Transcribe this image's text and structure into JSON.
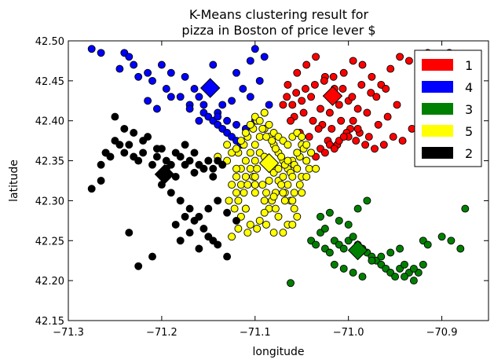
{
  "chart_data": {
    "type": "scatter",
    "title": "K-Means clustering result for\npizza in Boston of price lever $",
    "xlabel": "longitude",
    "ylabel": "latitude",
    "xlim": [
      -71.3,
      -70.85
    ],
    "ylim": [
      42.15,
      42.5
    ],
    "x_ticks": [
      "−71.3",
      "−71.2",
      "−71.1",
      "−71.0",
      "−70.9"
    ],
    "y_ticks": [
      "42.15",
      "42.20",
      "42.25",
      "42.30",
      "42.35",
      "42.40",
      "42.45",
      "42.50"
    ],
    "grid": false,
    "legend_position": "top-right",
    "legend": [
      {
        "label": "1",
        "color": "#ff0000"
      },
      {
        "label": "4",
        "color": "#0000ff"
      },
      {
        "label": "3",
        "color": "#008000"
      },
      {
        "label": "5",
        "color": "#ffff00"
      },
      {
        "label": "2",
        "color": "#000000"
      }
    ],
    "centroids": [
      {
        "cluster": "1",
        "x": -71.017,
        "y": 42.431,
        "color": "#ff0000"
      },
      {
        "cluster": "4",
        "x": -71.148,
        "y": 42.441,
        "color": "#0000ff"
      },
      {
        "cluster": "3",
        "x": -70.99,
        "y": 42.238,
        "color": "#008000"
      },
      {
        "cluster": "5",
        "x": -71.085,
        "y": 42.347,
        "color": "#ffff00"
      },
      {
        "cluster": "2",
        "x": -71.197,
        "y": 42.333,
        "color": "#000000"
      }
    ],
    "series": [
      {
        "name": "1",
        "color": "#ff0000",
        "x": [
          -71.065,
          -71.055,
          -71.045,
          -71.035,
          -71.025,
          -71.015,
          -71.005,
          -70.995,
          -70.985,
          -70.975,
          -70.965,
          -70.955,
          -70.945,
          -70.935,
          -70.925,
          -70.915,
          -70.905,
          -70.895,
          -70.885,
          -71.06,
          -71.05,
          -71.04,
          -71.03,
          -71.02,
          -71.01,
          -71.0,
          -70.99,
          -70.98,
          -70.97,
          -70.96,
          -71.07,
          -71.058,
          -71.048,
          -71.038,
          -71.028,
          -71.018,
          -71.008,
          -70.998,
          -70.988,
          -70.978,
          -70.968,
          -70.958,
          -70.948,
          -71.062,
          -71.052,
          -71.042,
          -71.032,
          -71.022,
          -71.012,
          -71.002,
          -70.992,
          -70.982,
          -70.972,
          -70.962,
          -70.952,
          -70.942,
          -70.932,
          -70.922,
          -70.912,
          -70.902,
          -70.892,
          -70.888,
          -70.875,
          -70.88,
          -71.066,
          -71.056,
          -71.046,
          -71.036,
          -71.026,
          -71.016,
          -71.006,
          -70.996,
          -70.986,
          -70.976,
          -71.04,
          -71.03,
          -71.02,
          -71.01,
          -71.0,
          -70.99,
          -71.045,
          -71.035,
          -71.025,
          -71.015,
          -71.005,
          -70.995
        ],
        "y": [
          42.445,
          42.46,
          42.47,
          42.48,
          42.455,
          42.44,
          42.46,
          42.475,
          42.47,
          42.455,
          42.445,
          42.465,
          42.48,
          42.475,
          42.46,
          42.485,
          42.48,
          42.47,
          42.46,
          42.42,
          42.425,
          42.43,
          42.415,
          42.41,
          42.42,
          42.425,
          42.415,
          42.41,
          42.43,
          42.44,
          42.42,
          42.405,
          42.41,
          42.4,
          42.395,
          42.39,
          42.4,
          42.39,
          42.385,
          42.38,
          42.395,
          42.405,
          42.42,
          42.4,
          42.385,
          42.38,
          42.39,
          42.375,
          42.37,
          42.385,
          42.375,
          42.37,
          42.365,
          42.37,
          42.38,
          42.375,
          42.39,
          42.4,
          42.47,
          42.48,
          42.485,
          42.475,
          42.48,
          42.43,
          42.43,
          42.435,
          42.44,
          42.445,
          42.45,
          42.455,
          42.44,
          42.43,
          42.445,
          42.435,
          42.36,
          42.365,
          42.37,
          42.375,
          42.38,
          42.39,
          42.35,
          42.355,
          42.36,
          42.365,
          42.38,
          42.4
        ]
      },
      {
        "name": "4",
        "color": "#0000ff",
        "x": [
          -71.275,
          -71.265,
          -71.24,
          -71.235,
          -71.215,
          -71.2,
          -71.19,
          -71.175,
          -71.165,
          -71.16,
          -71.155,
          -71.14,
          -71.13,
          -71.12,
          -71.11,
          -71.1,
          -71.09,
          -71.085,
          -71.21,
          -71.195,
          -71.18,
          -71.17,
          -71.155,
          -71.15,
          -71.145,
          -71.14,
          -71.135,
          -71.13,
          -71.125,
          -71.12,
          -71.115,
          -71.11,
          -71.105,
          -71.245,
          -71.23,
          -71.225,
          -71.215,
          -71.205,
          -71.19,
          -71.17,
          -71.14,
          -71.12,
          -71.1,
          -71.09,
          -71.105,
          -71.095,
          -71.113,
          -71.125,
          -71.135,
          -71.145,
          -71.16
        ],
        "y": [
          42.49,
          42.485,
          42.485,
          42.48,
          42.46,
          42.47,
          42.46,
          42.455,
          42.44,
          42.43,
          42.42,
          42.41,
          42.4,
          42.395,
          42.39,
          42.4,
          42.41,
          42.42,
          42.45,
          42.44,
          42.43,
          42.42,
          42.41,
          42.405,
          42.4,
          42.395,
          42.39,
          42.385,
          42.38,
          42.375,
          42.37,
          42.39,
          42.43,
          42.465,
          42.47,
          42.455,
          42.425,
          42.415,
          42.43,
          42.415,
          42.405,
          42.46,
          42.49,
          42.48,
          42.475,
          42.45,
          42.44,
          42.425,
          42.42,
          42.47,
          42.4
        ]
      },
      {
        "name": "3",
        "color": "#008000",
        "x": [
          -71.04,
          -71.035,
          -71.03,
          -71.025,
          -71.02,
          -71.015,
          -71.01,
          -71.005,
          -71.0,
          -70.995,
          -70.99,
          -70.985,
          -70.98,
          -70.975,
          -70.97,
          -70.965,
          -70.96,
          -70.955,
          -70.95,
          -70.945,
          -70.94,
          -70.935,
          -70.93,
          -70.925,
          -70.92,
          -70.915,
          -70.9,
          -70.89,
          -70.88,
          -70.875,
          -71.03,
          -71.02,
          -71.0,
          -70.99,
          -70.98,
          -71.015,
          -71.005,
          -70.995,
          -70.985,
          -70.975,
          -70.965,
          -70.955,
          -70.945,
          -70.94,
          -70.93,
          -70.92,
          -71.062,
          -71.025,
          -71.01
        ],
        "y": [
          42.25,
          42.245,
          42.26,
          42.24,
          42.235,
          42.25,
          42.245,
          42.24,
          42.25,
          42.255,
          42.245,
          42.24,
          42.235,
          42.23,
          42.225,
          42.22,
          42.215,
          42.21,
          42.205,
          42.215,
          42.22,
          42.21,
          42.2,
          42.21,
          42.25,
          42.245,
          42.255,
          42.25,
          42.24,
          42.29,
          42.28,
          42.285,
          42.27,
          42.29,
          42.3,
          42.22,
          42.215,
          42.21,
          42.205,
          42.225,
          42.23,
          42.235,
          42.24,
          42.205,
          42.215,
          42.22,
          42.197,
          42.265,
          42.275
        ]
      },
      {
        "name": "5",
        "color": "#ffff00",
        "x": [
          -71.12,
          -71.115,
          -71.11,
          -71.105,
          -71.1,
          -71.095,
          -71.09,
          -71.085,
          -71.08,
          -71.075,
          -71.07,
          -71.065,
          -71.06,
          -71.055,
          -71.05,
          -71.045,
          -71.118,
          -71.112,
          -71.108,
          -71.102,
          -71.098,
          -71.092,
          -71.088,
          -71.082,
          -71.078,
          -71.072,
          -71.068,
          -71.062,
          -71.058,
          -71.052,
          -71.048,
          -71.042,
          -71.125,
          -71.12,
          -71.115,
          -71.11,
          -71.105,
          -71.1,
          -71.095,
          -71.09,
          -71.085,
          -71.08,
          -71.075,
          -71.07,
          -71.065,
          -71.06,
          -71.055,
          -71.05,
          -71.128,
          -71.122,
          -71.118,
          -71.112,
          -71.108,
          -71.102,
          -71.098,
          -71.092,
          -71.088,
          -71.082,
          -71.078,
          -71.072,
          -71.068,
          -71.062,
          -71.058,
          -71.052,
          -71.13,
          -71.125,
          -71.12,
          -71.115,
          -71.11,
          -71.105,
          -71.1,
          -71.095,
          -71.09,
          -71.085,
          -71.08,
          -71.075,
          -71.07,
          -71.065,
          -71.06,
          -71.055,
          -71.05,
          -71.045,
          -71.04,
          -71.035,
          -71.115,
          -71.105,
          -71.095,
          -71.085,
          -71.075,
          -71.065,
          -71.055,
          -71.108,
          -71.098,
          -71.088,
          -71.078,
          -71.068,
          -71.058,
          -71.1,
          -71.09,
          -71.08,
          -71.07,
          -71.06,
          -71.05,
          -71.14,
          -71.135,
          -71.13,
          -71.12,
          -71.11,
          -71.09,
          -71.08,
          -71.07,
          -71.06,
          -71.1,
          -71.085,
          -71.075,
          -71.065,
          -71.055,
          -71.045,
          -71.125,
          -71.118,
          -71.11,
          -71.1
        ],
        "y": [
          42.33,
          42.34,
          42.35,
          42.36,
          42.37,
          42.38,
          42.39,
          42.38,
          42.37,
          42.36,
          42.35,
          42.34,
          42.35,
          42.36,
          42.37,
          42.35,
          42.36,
          42.37,
          42.38,
          42.39,
          42.4,
          42.39,
          42.38,
          42.375,
          42.365,
          42.355,
          42.345,
          42.335,
          42.345,
          42.355,
          42.365,
          42.34,
          42.32,
          42.31,
          42.32,
          42.33,
          42.34,
          42.35,
          42.36,
          42.355,
          42.345,
          42.335,
          42.325,
          42.33,
          42.32,
          42.33,
          42.34,
          42.33,
          42.3,
          42.29,
          42.3,
          42.31,
          42.32,
          42.33,
          42.34,
          42.32,
          42.31,
          42.3,
          42.31,
          42.32,
          42.31,
          42.3,
          42.31,
          42.32,
          42.35,
          42.36,
          42.365,
          42.375,
          42.385,
          42.395,
          42.405,
          42.4,
          42.41,
          42.395,
          42.385,
          42.38,
          42.375,
          42.37,
          42.38,
          42.385,
          42.38,
          42.37,
          42.36,
          42.34,
          42.28,
          42.27,
          42.275,
          42.29,
          42.28,
          42.27,
          42.28,
          42.26,
          42.265,
          42.27,
          42.29,
          42.3,
          42.29,
          42.33,
          42.3,
          42.305,
          42.31,
          42.3,
          42.31,
          42.355,
          42.345,
          42.37,
          42.34,
          42.29,
          42.285,
          42.26,
          42.26,
          42.27,
          42.32,
          42.325,
          42.34,
          42.35,
          42.36,
          42.33,
          42.255,
          42.265,
          42.29,
          42.31
        ]
      },
      {
        "name": "2",
        "color": "#000000",
        "x": [
          -71.275,
          -71.265,
          -71.26,
          -71.25,
          -71.245,
          -71.24,
          -71.235,
          -71.23,
          -71.225,
          -71.22,
          -71.21,
          -71.205,
          -71.2,
          -71.195,
          -71.19,
          -71.185,
          -71.18,
          -71.175,
          -71.17,
          -71.165,
          -71.16,
          -71.155,
          -71.15,
          -71.145,
          -71.14,
          -71.135,
          -71.25,
          -71.24,
          -71.23,
          -71.22,
          -71.215,
          -71.205,
          -71.195,
          -71.185,
          -71.175,
          -71.165,
          -71.155,
          -71.145,
          -71.265,
          -71.255,
          -71.2,
          -71.19,
          -71.18,
          -71.17,
          -71.16,
          -71.15,
          -71.14,
          -71.13,
          -71.12,
          -71.18,
          -71.17,
          -71.16,
          -71.15,
          -71.14,
          -71.13,
          -71.185,
          -71.175,
          -71.165,
          -71.155,
          -71.145,
          -71.235,
          -71.21,
          -71.225,
          -71.26,
          -71.15
        ],
        "y": [
          42.315,
          42.325,
          42.36,
          42.375,
          42.37,
          42.36,
          42.37,
          42.355,
          42.35,
          42.36,
          42.345,
          42.355,
          42.365,
          42.35,
          42.345,
          42.36,
          42.355,
          42.37,
          42.35,
          42.36,
          42.345,
          42.34,
          42.35,
          42.34,
          42.35,
          42.345,
          42.405,
          42.39,
          42.385,
          42.375,
          42.38,
          42.365,
          42.34,
          42.33,
          42.345,
          42.335,
          42.34,
          42.33,
          42.345,
          42.355,
          42.32,
          42.31,
          42.3,
          42.29,
          42.28,
          42.29,
          42.3,
          42.285,
          42.275,
          42.25,
          42.26,
          42.24,
          42.255,
          42.245,
          42.23,
          42.27,
          42.28,
          42.275,
          42.265,
          42.25,
          42.26,
          42.23,
          42.218,
          42.36,
          42.35
        ]
      }
    ]
  }
}
